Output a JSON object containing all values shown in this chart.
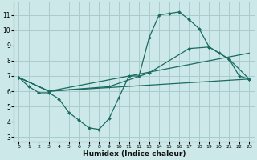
{
  "bg_color": "#cce8e8",
  "grid_color": "#aacccc",
  "line_color": "#1a6b60",
  "xlabel": "Humidex (Indice chaleur)",
  "ylabel_ticks": [
    3,
    4,
    5,
    6,
    7,
    8,
    9,
    10,
    11
  ],
  "xticks": [
    0,
    1,
    2,
    3,
    4,
    5,
    6,
    7,
    8,
    9,
    10,
    11,
    12,
    13,
    14,
    15,
    16,
    17,
    18,
    19,
    20,
    21,
    22,
    23
  ],
  "xlim": [
    -0.5,
    23.5
  ],
  "ylim": [
    2.7,
    11.8
  ],
  "line1_x": [
    0,
    1,
    2,
    3,
    4,
    5,
    6,
    7,
    8,
    9,
    10,
    11,
    12,
    13,
    14,
    15,
    16,
    17,
    18,
    19,
    20,
    21,
    22,
    23
  ],
  "line1_y": [
    6.9,
    6.3,
    5.9,
    5.9,
    5.5,
    4.6,
    4.1,
    3.6,
    3.5,
    4.2,
    5.6,
    7.0,
    7.0,
    9.5,
    11.0,
    11.1,
    11.2,
    10.7,
    10.1,
    8.9,
    8.5,
    8.1,
    7.0,
    6.8
  ],
  "line2_x": [
    0,
    3,
    9,
    13,
    17,
    19,
    21,
    23
  ],
  "line2_y": [
    6.9,
    6.0,
    6.3,
    7.2,
    8.8,
    8.9,
    8.1,
    6.8
  ],
  "line3_x": [
    0,
    3,
    23
  ],
  "line3_y": [
    6.9,
    6.0,
    8.5
  ],
  "line4_x": [
    0,
    3,
    23
  ],
  "line4_y": [
    6.9,
    6.0,
    6.8
  ]
}
